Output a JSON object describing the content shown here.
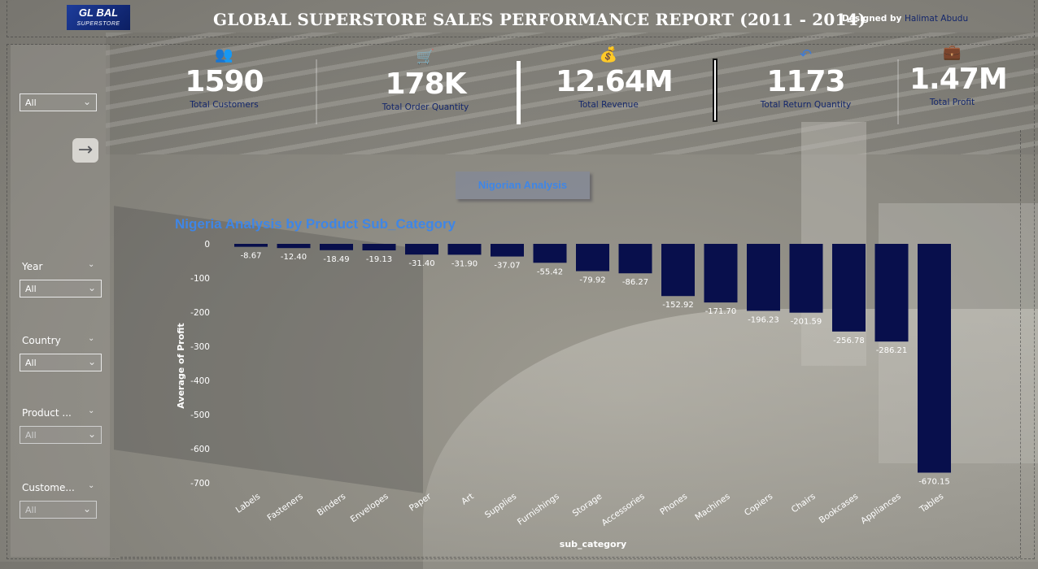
{
  "header": {
    "logo_text": "GL BAL",
    "logo_sub": "SUPERSTORE",
    "title": "GLOBAL SUPERSTORE SALES PERFORMANCE REPORT (2011 - 2014)",
    "designed_by_prefix": "Designed by",
    "designer_name": "Halimat Abudu"
  },
  "slicers": {
    "top": {
      "value": "All"
    },
    "year": {
      "label": "Year",
      "value": "All"
    },
    "country": {
      "label": "Country",
      "value": "All"
    },
    "product": {
      "label": "Product ...",
      "value": "All"
    },
    "customer": {
      "label": "Custome...",
      "value": "All"
    }
  },
  "kpis": [
    {
      "icon": "customers-icon",
      "value": "1590",
      "label": "Total Customers"
    },
    {
      "icon": "cart-icon",
      "value": "178K",
      "label": "Total Order Quantity"
    },
    {
      "icon": "wallet-icon",
      "value": "12.64M",
      "label": "Total Revenue"
    },
    {
      "icon": "return-icon",
      "value": "1173",
      "label": "Total Return Quantity"
    },
    {
      "icon": "profit-icon",
      "value": "1.47M",
      "label": "Total Profit"
    }
  ],
  "section_label": "Nigorian Analysis",
  "colors": {
    "bar": "#080f4c",
    "title_blue": "#3f86e6",
    "kpi_label": "#14276b"
  },
  "chart_data": {
    "type": "bar",
    "title": "Nigeria Analysis by Product Sub_Category",
    "xlabel": "sub_category",
    "ylabel": "Average of Profit",
    "ylim": [
      -700,
      0
    ],
    "yticks": [
      0,
      -100,
      -200,
      -300,
      -400,
      -500,
      -600,
      -700
    ],
    "grid": false,
    "categories": [
      "Labels",
      "Fasteners",
      "Binders",
      "Envelopes",
      "Paper",
      "Art",
      "Supplies",
      "Furnishings",
      "Storage",
      "Accessories",
      "Phones",
      "Machines",
      "Copiers",
      "Chairs",
      "Bookcases",
      "Appliances",
      "Tables"
    ],
    "values": [
      -8.67,
      -12.4,
      -18.49,
      -19.13,
      -31.4,
      -31.9,
      -37.07,
      -55.42,
      -79.92,
      -86.27,
      -152.92,
      -171.7,
      -196.23,
      -201.59,
      -256.78,
      -286.21,
      -670.15
    ],
    "value_labels": [
      "-8.67",
      "-12.40",
      "-18.49",
      "-19.13",
      "-31.40",
      "-31.90",
      "-37.07",
      "-55.42",
      "-79.92",
      "-86.27",
      "-152.92",
      "-171.70",
      "-196.23",
      "-201.59",
      "-256.78",
      "-286.21",
      "-670.15"
    ]
  }
}
